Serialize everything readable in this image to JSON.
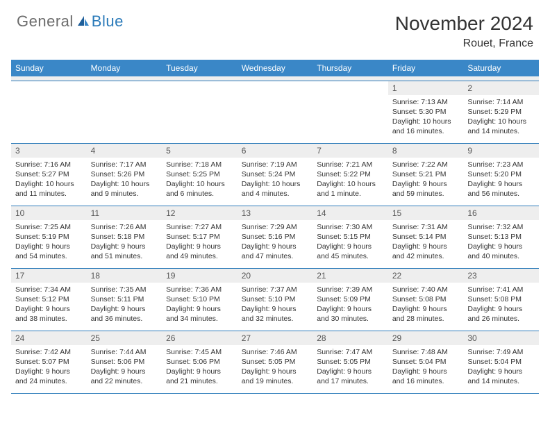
{
  "logo": {
    "general": "General",
    "blue": "Blue"
  },
  "title": "November 2024",
  "location": "Rouet, France",
  "colors": {
    "header_bg": "#3a87c7",
    "header_text": "#ffffff",
    "rule": "#2a7ab9",
    "daynum_bg": "#eeeeee",
    "body_text": "#333333",
    "logo_gray": "#6b6b6b",
    "logo_blue": "#2a7ab9"
  },
  "day_headers": [
    "Sunday",
    "Monday",
    "Tuesday",
    "Wednesday",
    "Thursday",
    "Friday",
    "Saturday"
  ],
  "weeks": [
    [
      null,
      null,
      null,
      null,
      null,
      {
        "n": "1",
        "sunrise": "Sunrise: 7:13 AM",
        "sunset": "Sunset: 5:30 PM",
        "daylight": "Daylight: 10 hours and 16 minutes."
      },
      {
        "n": "2",
        "sunrise": "Sunrise: 7:14 AM",
        "sunset": "Sunset: 5:29 PM",
        "daylight": "Daylight: 10 hours and 14 minutes."
      }
    ],
    [
      {
        "n": "3",
        "sunrise": "Sunrise: 7:16 AM",
        "sunset": "Sunset: 5:27 PM",
        "daylight": "Daylight: 10 hours and 11 minutes."
      },
      {
        "n": "4",
        "sunrise": "Sunrise: 7:17 AM",
        "sunset": "Sunset: 5:26 PM",
        "daylight": "Daylight: 10 hours and 9 minutes."
      },
      {
        "n": "5",
        "sunrise": "Sunrise: 7:18 AM",
        "sunset": "Sunset: 5:25 PM",
        "daylight": "Daylight: 10 hours and 6 minutes."
      },
      {
        "n": "6",
        "sunrise": "Sunrise: 7:19 AM",
        "sunset": "Sunset: 5:24 PM",
        "daylight": "Daylight: 10 hours and 4 minutes."
      },
      {
        "n": "7",
        "sunrise": "Sunrise: 7:21 AM",
        "sunset": "Sunset: 5:22 PM",
        "daylight": "Daylight: 10 hours and 1 minute."
      },
      {
        "n": "8",
        "sunrise": "Sunrise: 7:22 AM",
        "sunset": "Sunset: 5:21 PM",
        "daylight": "Daylight: 9 hours and 59 minutes."
      },
      {
        "n": "9",
        "sunrise": "Sunrise: 7:23 AM",
        "sunset": "Sunset: 5:20 PM",
        "daylight": "Daylight: 9 hours and 56 minutes."
      }
    ],
    [
      {
        "n": "10",
        "sunrise": "Sunrise: 7:25 AM",
        "sunset": "Sunset: 5:19 PM",
        "daylight": "Daylight: 9 hours and 54 minutes."
      },
      {
        "n": "11",
        "sunrise": "Sunrise: 7:26 AM",
        "sunset": "Sunset: 5:18 PM",
        "daylight": "Daylight: 9 hours and 51 minutes."
      },
      {
        "n": "12",
        "sunrise": "Sunrise: 7:27 AM",
        "sunset": "Sunset: 5:17 PM",
        "daylight": "Daylight: 9 hours and 49 minutes."
      },
      {
        "n": "13",
        "sunrise": "Sunrise: 7:29 AM",
        "sunset": "Sunset: 5:16 PM",
        "daylight": "Daylight: 9 hours and 47 minutes."
      },
      {
        "n": "14",
        "sunrise": "Sunrise: 7:30 AM",
        "sunset": "Sunset: 5:15 PM",
        "daylight": "Daylight: 9 hours and 45 minutes."
      },
      {
        "n": "15",
        "sunrise": "Sunrise: 7:31 AM",
        "sunset": "Sunset: 5:14 PM",
        "daylight": "Daylight: 9 hours and 42 minutes."
      },
      {
        "n": "16",
        "sunrise": "Sunrise: 7:32 AM",
        "sunset": "Sunset: 5:13 PM",
        "daylight": "Daylight: 9 hours and 40 minutes."
      }
    ],
    [
      {
        "n": "17",
        "sunrise": "Sunrise: 7:34 AM",
        "sunset": "Sunset: 5:12 PM",
        "daylight": "Daylight: 9 hours and 38 minutes."
      },
      {
        "n": "18",
        "sunrise": "Sunrise: 7:35 AM",
        "sunset": "Sunset: 5:11 PM",
        "daylight": "Daylight: 9 hours and 36 minutes."
      },
      {
        "n": "19",
        "sunrise": "Sunrise: 7:36 AM",
        "sunset": "Sunset: 5:10 PM",
        "daylight": "Daylight: 9 hours and 34 minutes."
      },
      {
        "n": "20",
        "sunrise": "Sunrise: 7:37 AM",
        "sunset": "Sunset: 5:10 PM",
        "daylight": "Daylight: 9 hours and 32 minutes."
      },
      {
        "n": "21",
        "sunrise": "Sunrise: 7:39 AM",
        "sunset": "Sunset: 5:09 PM",
        "daylight": "Daylight: 9 hours and 30 minutes."
      },
      {
        "n": "22",
        "sunrise": "Sunrise: 7:40 AM",
        "sunset": "Sunset: 5:08 PM",
        "daylight": "Daylight: 9 hours and 28 minutes."
      },
      {
        "n": "23",
        "sunrise": "Sunrise: 7:41 AM",
        "sunset": "Sunset: 5:08 PM",
        "daylight": "Daylight: 9 hours and 26 minutes."
      }
    ],
    [
      {
        "n": "24",
        "sunrise": "Sunrise: 7:42 AM",
        "sunset": "Sunset: 5:07 PM",
        "daylight": "Daylight: 9 hours and 24 minutes."
      },
      {
        "n": "25",
        "sunrise": "Sunrise: 7:44 AM",
        "sunset": "Sunset: 5:06 PM",
        "daylight": "Daylight: 9 hours and 22 minutes."
      },
      {
        "n": "26",
        "sunrise": "Sunrise: 7:45 AM",
        "sunset": "Sunset: 5:06 PM",
        "daylight": "Daylight: 9 hours and 21 minutes."
      },
      {
        "n": "27",
        "sunrise": "Sunrise: 7:46 AM",
        "sunset": "Sunset: 5:05 PM",
        "daylight": "Daylight: 9 hours and 19 minutes."
      },
      {
        "n": "28",
        "sunrise": "Sunrise: 7:47 AM",
        "sunset": "Sunset: 5:05 PM",
        "daylight": "Daylight: 9 hours and 17 minutes."
      },
      {
        "n": "29",
        "sunrise": "Sunrise: 7:48 AM",
        "sunset": "Sunset: 5:04 PM",
        "daylight": "Daylight: 9 hours and 16 minutes."
      },
      {
        "n": "30",
        "sunrise": "Sunrise: 7:49 AM",
        "sunset": "Sunset: 5:04 PM",
        "daylight": "Daylight: 9 hours and 14 minutes."
      }
    ]
  ]
}
